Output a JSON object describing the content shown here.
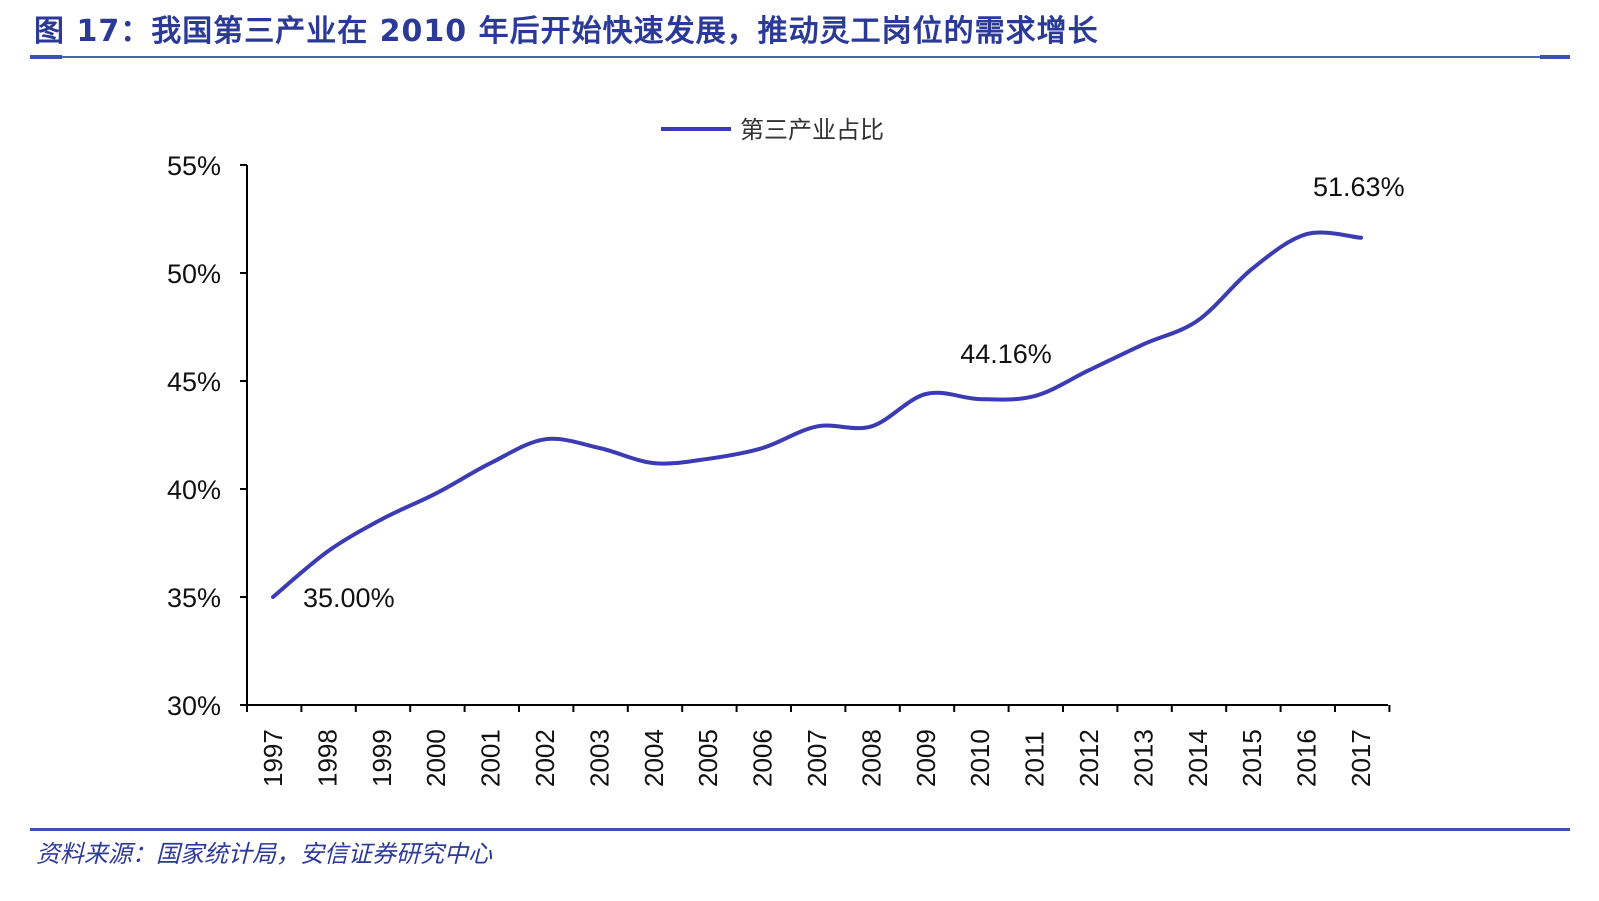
{
  "header": {
    "title": "图 17：我国第三产业在 2010 年后开始快速发展，推动灵工岗位的需求增长"
  },
  "footer": {
    "source": "资料来源：国家统计局，安信证券研究中心"
  },
  "colors": {
    "accent": "#3d52ad",
    "series": "#3b3bb3",
    "axis": "#000000"
  },
  "chart_data": {
    "type": "line",
    "title": "",
    "xlabel": "",
    "ylabel": "",
    "legend_position": "top-center",
    "grid": false,
    "ylim": [
      30,
      55
    ],
    "yticks": [
      {
        "value": 30,
        "label": "30%"
      },
      {
        "value": 35,
        "label": "35%"
      },
      {
        "value": 40,
        "label": "40%"
      },
      {
        "value": 45,
        "label": "45%"
      },
      {
        "value": 50,
        "label": "50%"
      },
      {
        "value": 55,
        "label": "55%"
      }
    ],
    "categories": [
      "1997",
      "1998",
      "1999",
      "2000",
      "2001",
      "2002",
      "2003",
      "2004",
      "2005",
      "2006",
      "2007",
      "2008",
      "2009",
      "2010",
      "2011",
      "2012",
      "2013",
      "2014",
      "2015",
      "2016",
      "2017"
    ],
    "series": [
      {
        "name": "第三产业占比",
        "values": [
          35.0,
          37.1,
          38.6,
          39.8,
          41.2,
          42.3,
          41.9,
          41.2,
          41.4,
          41.9,
          42.9,
          42.9,
          44.4,
          44.16,
          44.3,
          45.5,
          46.7,
          47.8,
          50.2,
          51.8,
          51.63
        ]
      }
    ],
    "annotations": [
      {
        "category": "1997",
        "value": 35.0,
        "label": "35.00%"
      },
      {
        "category": "2010",
        "value": 44.16,
        "label": "44.16%"
      },
      {
        "category": "2017",
        "value": 51.63,
        "label": "51.63%"
      }
    ]
  }
}
